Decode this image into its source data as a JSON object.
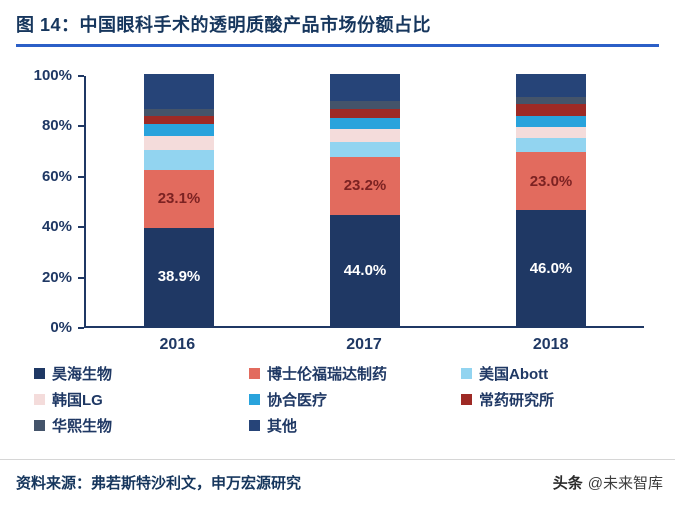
{
  "header": {
    "title": "图 14：中国眼科手术的透明质酸产品市场份额占比"
  },
  "colors": {
    "title_text": "#16365D",
    "title_rule": "#2B5FC7",
    "axis_text": "#1F3864",
    "axis_line": "#1F3864",
    "source_text": "#16365D"
  },
  "chart_data": {
    "type": "bar",
    "stacked": true,
    "title": "图 14：中国眼科手术的透明质酸产品市场份额占比",
    "xlabel": "",
    "ylabel": "",
    "ylim": [
      0,
      100
    ],
    "y_ticks": [
      "100%",
      "80%",
      "60%",
      "40%",
      "20%",
      "0%"
    ],
    "grid": false,
    "legend_position": "bottom",
    "categories": [
      "2016",
      "2017",
      "2018"
    ],
    "series": [
      {
        "name": "昊海生物",
        "color": "#1F3864",
        "values": [
          38.9,
          44.0,
          46.0
        ],
        "labels": [
          "38.9%",
          "44.0%",
          "46.0%"
        ],
        "label_color": "#FFFFFF"
      },
      {
        "name": "博士伦福瑞达制药",
        "color": "#E26B5E",
        "values": [
          23.1,
          23.2,
          23.0
        ],
        "labels": [
          "23.1%",
          "23.2%",
          "23.0%"
        ],
        "label_color": "#7C2222"
      },
      {
        "name": "美国Abott",
        "color": "#92D4F0",
        "values": [
          8.0,
          6.0,
          5.5
        ]
      },
      {
        "name": "韩国LG",
        "color": "#F4DCDB",
        "values": [
          5.5,
          5.0,
          4.5
        ]
      },
      {
        "name": "协合医疗",
        "color": "#29A3DC",
        "values": [
          4.5,
          4.5,
          4.5
        ]
      },
      {
        "name": "常药研究所",
        "color": "#9E2A25",
        "values": [
          3.5,
          3.5,
          4.5
        ]
      },
      {
        "name": "华熙生物",
        "color": "#44546A",
        "values": [
          2.5,
          3.0,
          3.0
        ]
      },
      {
        "name": "其他",
        "color": "#264478",
        "values": [
          14.0,
          10.8,
          9.0
        ]
      }
    ]
  },
  "footer": {
    "source": "资料来源：弗若斯特沙利文，申万宏源研究",
    "watermark_brand": "头条",
    "watermark_handle": "@未来智库"
  }
}
